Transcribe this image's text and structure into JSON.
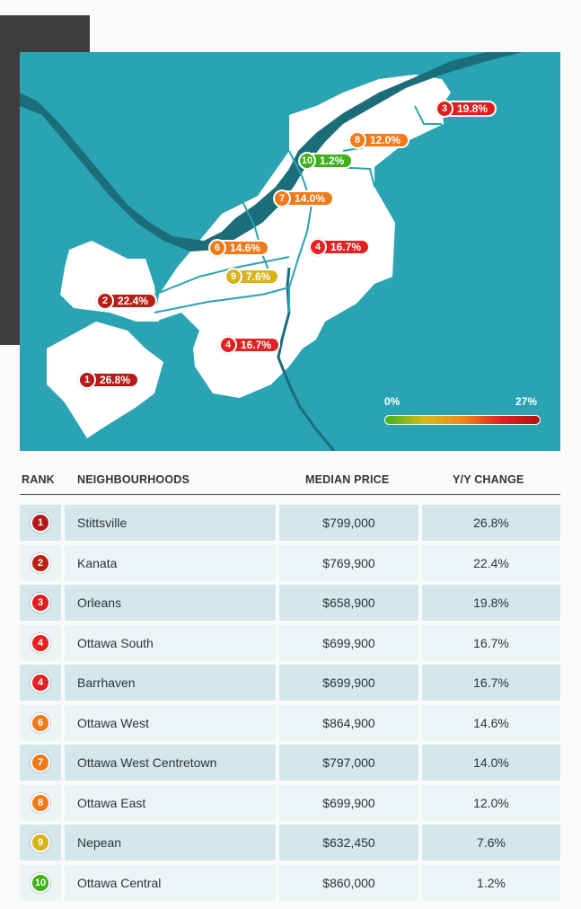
{
  "colors": {
    "water": "#2aa3b3",
    "river": "#1c6d7a",
    "land": "#ffffff",
    "row_dark": "#d3e7ec",
    "row_light": "#ecf4f6"
  },
  "legend": {
    "min_label": "0%",
    "max_label": "27%",
    "min_value": 0,
    "max_value": 27
  },
  "map_labels": [
    {
      "rank": "1",
      "change": "26.8%",
      "color": "#b41a1a"
    },
    {
      "rank": "2",
      "change": "22.4%",
      "color": "#b82016"
    },
    {
      "rank": "3",
      "change": "19.8%",
      "color": "#e01e1e"
    },
    {
      "rank": "4",
      "change": "16.7%",
      "color": "#e42020"
    },
    {
      "rank": "4",
      "change": "16.7%",
      "color": "#e42020"
    },
    {
      "rank": "6",
      "change": "14.6%",
      "color": "#f07a1a"
    },
    {
      "rank": "7",
      "change": "14.0%",
      "color": "#f07a1a"
    },
    {
      "rank": "8",
      "change": "12.0%",
      "color": "#f07a1a"
    },
    {
      "rank": "9",
      "change": "7.6%",
      "color": "#d8b41a"
    },
    {
      "rank": "10",
      "change": "1.2%",
      "color": "#3db21a"
    }
  ],
  "table": {
    "headers": {
      "rank": "RANK",
      "name": "NEIGHBOURHOODS",
      "price": "MEDIAN PRICE",
      "change": "Y/Y CHANGE"
    },
    "rows": [
      {
        "rank": "1",
        "name": "Stittsville",
        "price": "$799,000",
        "change": "26.8%",
        "color": "#b41a1a"
      },
      {
        "rank": "2",
        "name": "Kanata",
        "price": "$769,900",
        "change": "22.4%",
        "color": "#b82016"
      },
      {
        "rank": "3",
        "name": "Orleans",
        "price": "$658,900",
        "change": "19.8%",
        "color": "#e01e1e"
      },
      {
        "rank": "4",
        "name": "Ottawa South",
        "price": "$699,900",
        "change": "16.7%",
        "color": "#e42020"
      },
      {
        "rank": "4",
        "name": "Barrhaven",
        "price": "$699,900",
        "change": "16.7%",
        "color": "#e42020"
      },
      {
        "rank": "6",
        "name": "Ottawa West",
        "price": "$864,900",
        "change": "14.6%",
        "color": "#f07a1a"
      },
      {
        "rank": "7",
        "name": "Ottawa West Centretown",
        "price": "$797,000",
        "change": "14.0%",
        "color": "#f07a1a"
      },
      {
        "rank": "8",
        "name": "Ottawa East",
        "price": "$699,900",
        "change": "12.0%",
        "color": "#f07a1a"
      },
      {
        "rank": "9",
        "name": "Nepean",
        "price": "$632,450",
        "change": "7.6%",
        "color": "#d8b41a"
      },
      {
        "rank": "10",
        "name": "Ottawa Central",
        "price": "$860,000",
        "change": "1.2%",
        "color": "#3db21a"
      }
    ]
  }
}
